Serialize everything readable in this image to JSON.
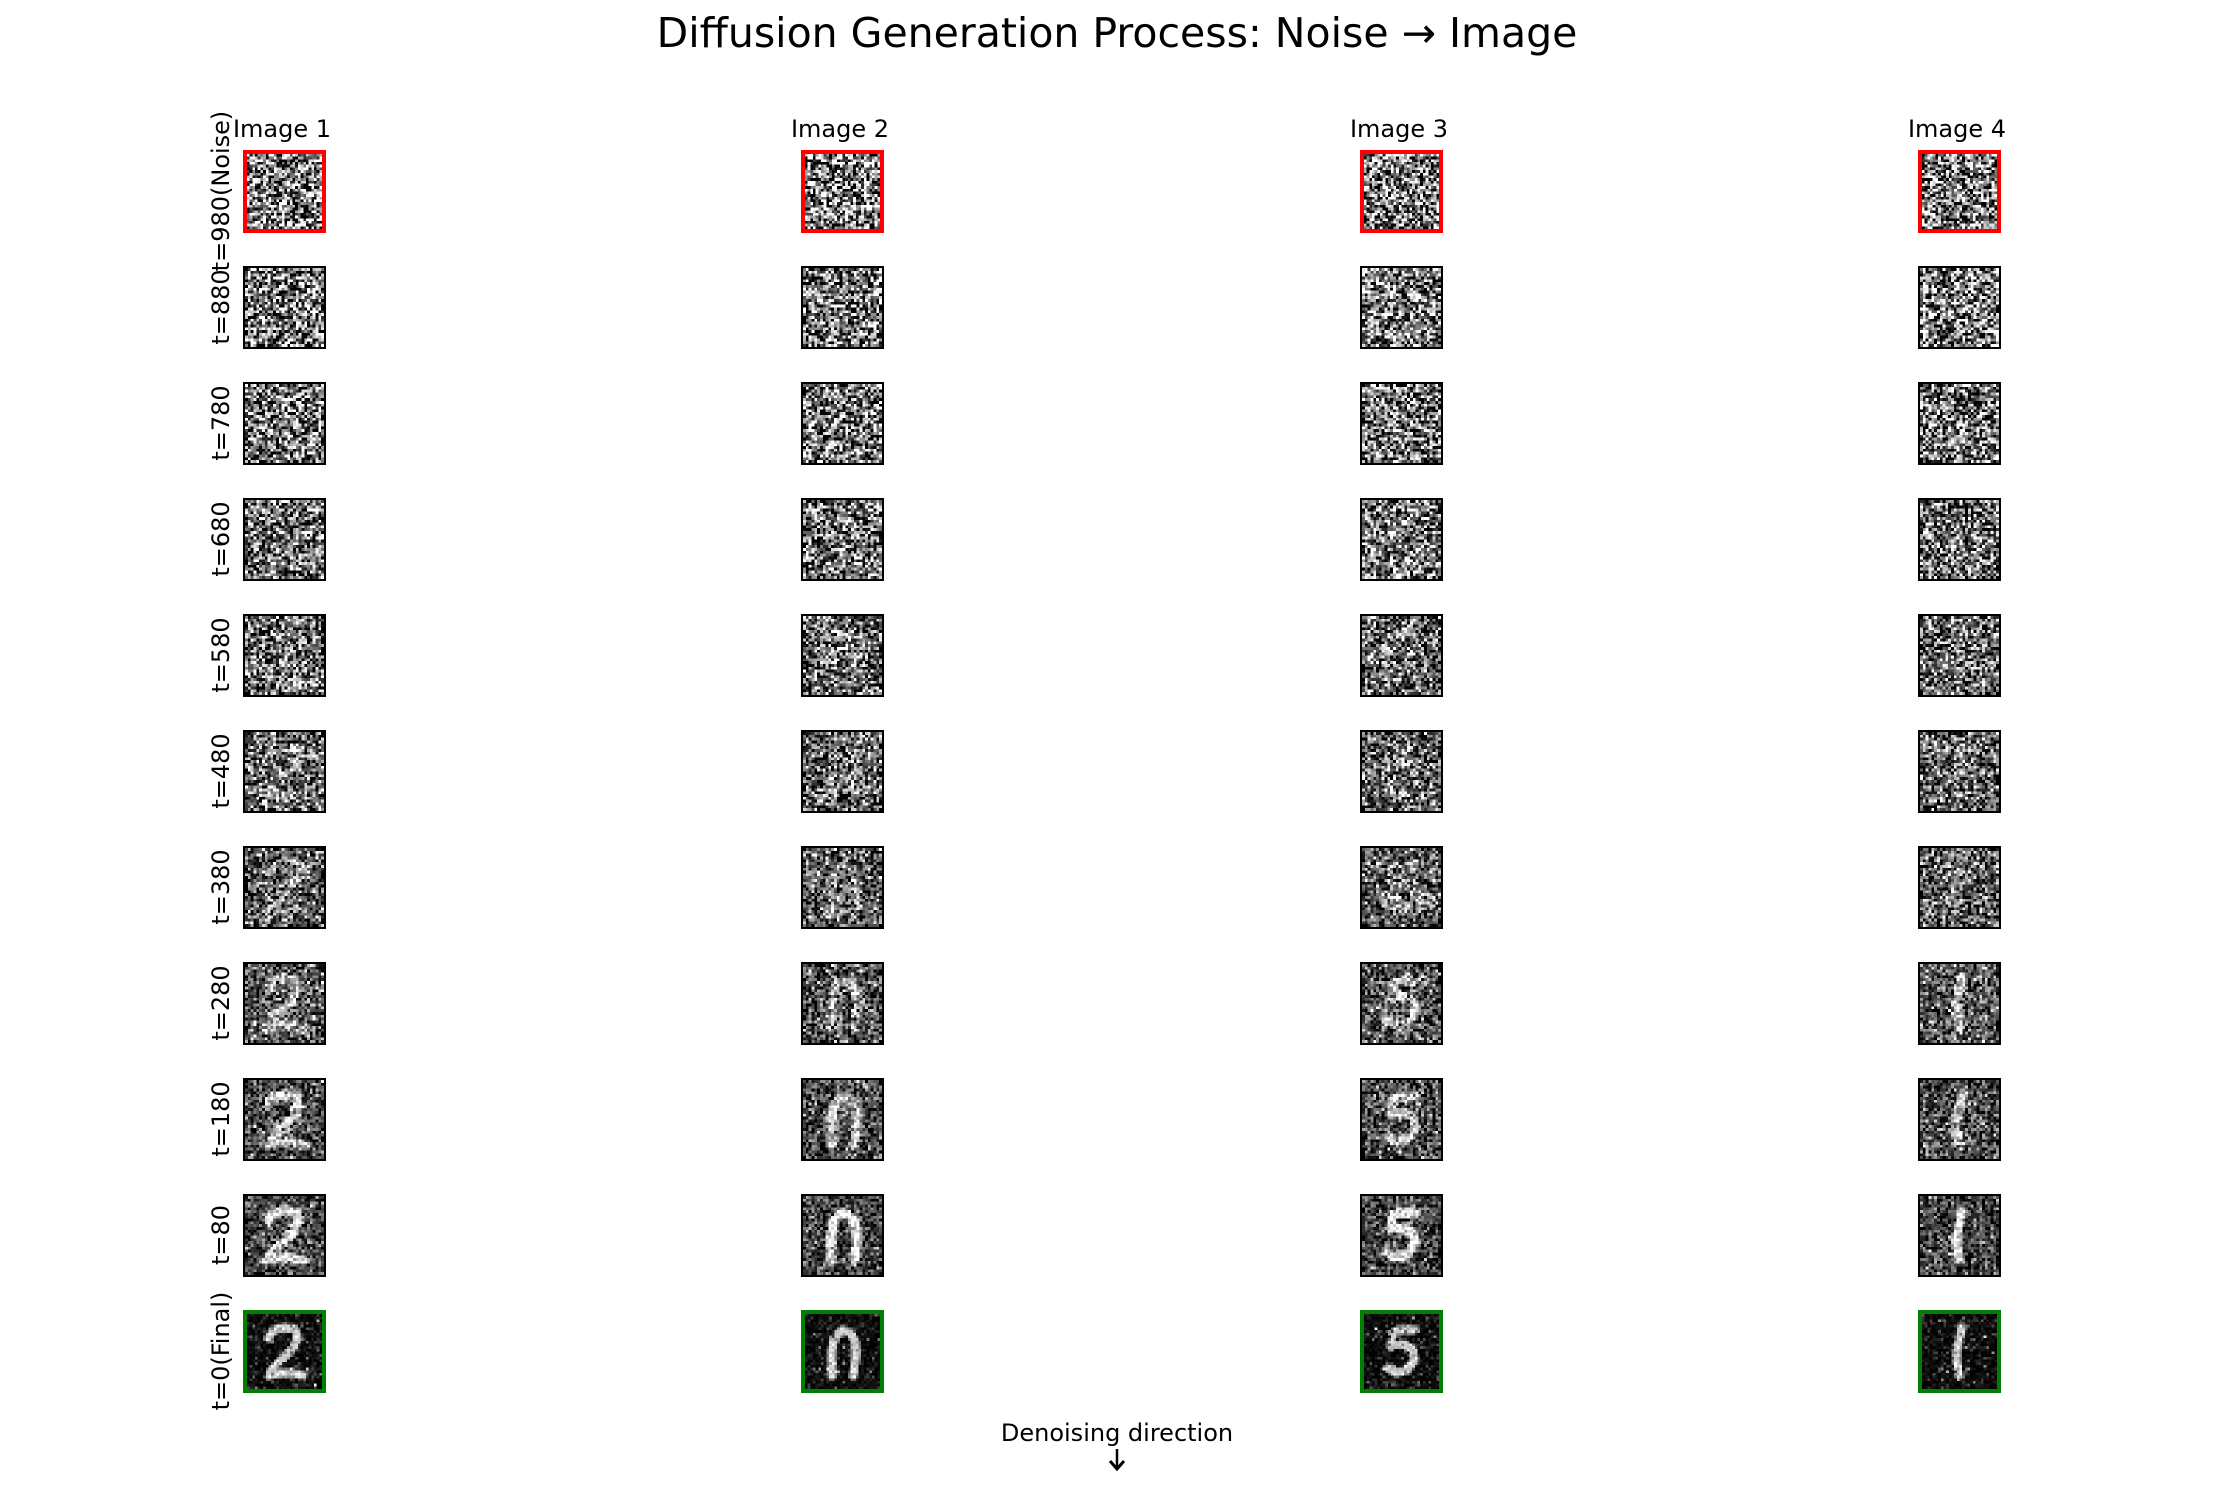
{
  "title": "Diffusion Generation Process: Noise → Image",
  "columns": [
    "Image 1",
    "Image 2",
    "Image 3",
    "Image 4"
  ],
  "rows": [
    {
      "label": "t=980(Noise)",
      "t": 980,
      "kind": "start"
    },
    {
      "label": "t=880",
      "t": 880,
      "kind": "mid"
    },
    {
      "label": "t=780",
      "t": 780,
      "kind": "mid"
    },
    {
      "label": "t=680",
      "t": 680,
      "kind": "mid"
    },
    {
      "label": "t=580",
      "t": 580,
      "kind": "mid"
    },
    {
      "label": "t=480",
      "t": 480,
      "kind": "mid"
    },
    {
      "label": "t=380",
      "t": 380,
      "kind": "mid"
    },
    {
      "label": "t=280",
      "t": 280,
      "kind": "mid"
    },
    {
      "label": "t=180",
      "t": 180,
      "kind": "mid"
    },
    {
      "label": "t=80",
      "t": 80,
      "kind": "mid"
    },
    {
      "label": "t=0(Final)",
      "t": 0,
      "kind": "final"
    }
  ],
  "digits_depicted": [
    "2",
    "0",
    "5",
    "1"
  ],
  "frame_colors": {
    "start": "#ff0000",
    "final": "#008000",
    "default": "#000000"
  },
  "footer": {
    "direction_label": "Denoising direction",
    "arrow_icon": "arrow-down-icon"
  }
}
